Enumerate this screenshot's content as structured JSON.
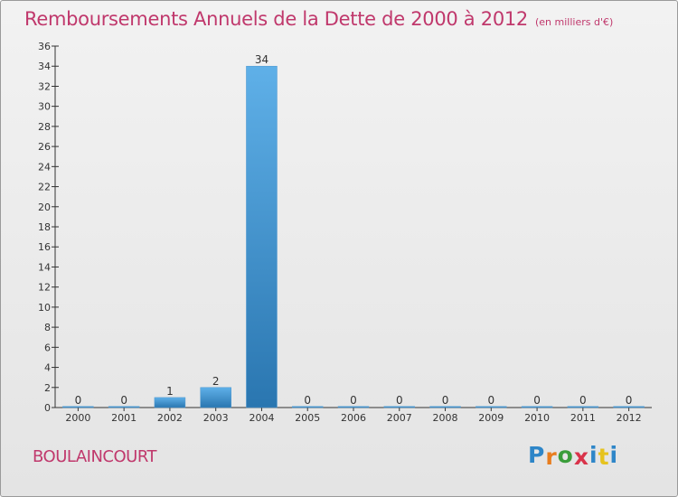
{
  "chart_data": {
    "type": "bar",
    "title": "Remboursements Annuels de la Dette de 2000 à 2012",
    "subtitle": "(en milliers d'€)",
    "categories": [
      "2000",
      "2001",
      "2002",
      "2003",
      "2004",
      "2005",
      "2006",
      "2007",
      "2008",
      "2009",
      "2010",
      "2011",
      "2012"
    ],
    "values": [
      0,
      0,
      1,
      2,
      34,
      0,
      0,
      0,
      0,
      0,
      0,
      0,
      0
    ],
    "xlabel": "",
    "ylabel": "",
    "ylim": [
      0,
      36
    ],
    "yticks": [
      0,
      2,
      4,
      6,
      8,
      10,
      12,
      14,
      16,
      18,
      20,
      22,
      24,
      26,
      28,
      30,
      32,
      34,
      36
    ],
    "grid": false,
    "data_labels": true
  },
  "commune": "BOULAINCOURT",
  "logo": {
    "text": "Proxiti",
    "letter_colors": [
      "#2e86c8",
      "#e87d1e",
      "#3a9d3a",
      "#d9334a",
      "#2e86c8",
      "#e6c31e",
      "#2e86c8"
    ]
  },
  "colors": {
    "title": "#c0386c",
    "bar_top": "#5fb0e8",
    "bar_bottom": "#2a76b0",
    "axis": "#333333",
    "text": "#333333"
  }
}
